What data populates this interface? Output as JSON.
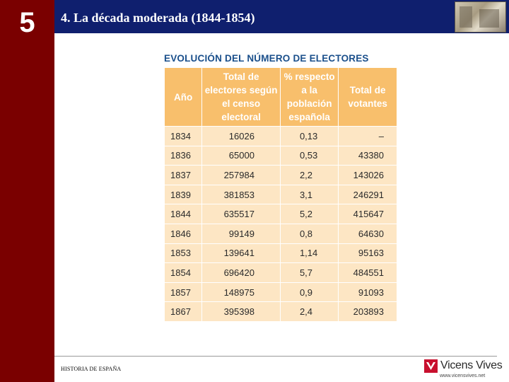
{
  "chapter": {
    "number": "5"
  },
  "header": {
    "title": "4. La década moderada (1844-1854)"
  },
  "table": {
    "title": "EVOLUCIÓN DEL NÚMERO DE ELECTORES",
    "headers": [
      "Año",
      "Total de electores según el censo electoral",
      "% respecto a la población española",
      "Total de votantes"
    ],
    "rows": [
      [
        "1834",
        "16026",
        "0,13",
        "–"
      ],
      [
        "1836",
        "65000",
        "0,53",
        "43380"
      ],
      [
        "1837",
        "257984",
        "2,2",
        "143026"
      ],
      [
        "1839",
        "381853",
        "3,1",
        "246291"
      ],
      [
        "1844",
        "635517",
        "5,2",
        "415647"
      ],
      [
        "1846",
        "99149",
        "0,8",
        "64630"
      ],
      [
        "1853",
        "139641",
        "1,14",
        "95163"
      ],
      [
        "1854",
        "696420",
        "5,7",
        "484551"
      ],
      [
        "1857",
        "148975",
        "0,9",
        "91093"
      ],
      [
        "1867",
        "395398",
        "2,4",
        "203893"
      ]
    ]
  },
  "footer": {
    "course": "HISTORIA DE ESPAÑA",
    "publisher": "Vicens Vives",
    "url": "www.vicensvives.net"
  },
  "colors": {
    "left_bar": "#7a0000",
    "top_bar": "#0f1f6e",
    "table_header": "#f8bf6c",
    "table_body": "#fde6c4",
    "table_title": "#1a4f8b",
    "logo": "#c8102e"
  }
}
